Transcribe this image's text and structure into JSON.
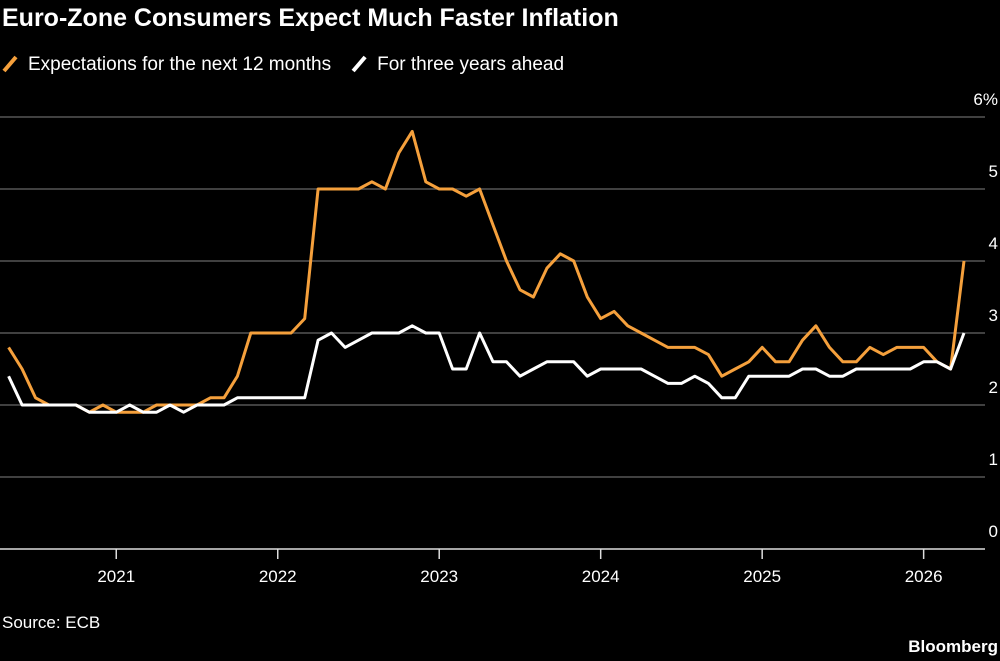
{
  "chart_data": {
    "type": "line",
    "title": "Euro-Zone Consumers Expect Much Faster Inflation",
    "source": "Source: ECB",
    "brand": "Bloomberg",
    "x": [
      2020.333,
      2020.417,
      2020.5,
      2020.583,
      2020.667,
      2020.75,
      2020.833,
      2020.917,
      2021.0,
      2021.083,
      2021.167,
      2021.25,
      2021.333,
      2021.417,
      2021.5,
      2021.583,
      2021.667,
      2021.75,
      2021.833,
      2021.917,
      2022.0,
      2022.083,
      2022.167,
      2022.25,
      2022.333,
      2022.417,
      2022.5,
      2022.583,
      2022.667,
      2022.75,
      2022.833,
      2022.917,
      2023.0,
      2023.083,
      2023.167,
      2023.25,
      2023.333,
      2023.417,
      2023.5,
      2023.583,
      2023.667,
      2023.75,
      2023.833,
      2023.917,
      2024.0,
      2024.083,
      2024.167,
      2024.25,
      2024.333,
      2024.417,
      2024.5,
      2024.583,
      2024.667,
      2024.75,
      2024.833,
      2024.917,
      2025.0,
      2025.083,
      2025.167,
      2025.25,
      2025.333,
      2025.417,
      2025.5,
      2025.583,
      2025.667,
      2025.75,
      2025.833,
      2025.917,
      2026.0,
      2026.083,
      2026.167,
      2026.25
    ],
    "series": [
      {
        "name": "Expectations for the next 12 months",
        "color": "#f5a03c",
        "values": [
          2.8,
          2.5,
          2.1,
          2.0,
          2.0,
          2.0,
          1.9,
          2.0,
          1.9,
          1.9,
          1.9,
          2.0,
          2.0,
          2.0,
          2.0,
          2.1,
          2.1,
          2.4,
          3.0,
          3.0,
          3.0,
          3.0,
          3.2,
          5.0,
          5.0,
          5.0,
          5.0,
          5.1,
          5.0,
          5.5,
          5.8,
          5.1,
          5.0,
          5.0,
          4.9,
          5.0,
          4.5,
          4.0,
          3.6,
          3.5,
          3.9,
          4.1,
          4.0,
          3.5,
          3.2,
          3.3,
          3.1,
          3.0,
          2.9,
          2.8,
          2.8,
          2.8,
          2.7,
          2.4,
          2.5,
          2.6,
          2.8,
          2.6,
          2.6,
          2.9,
          3.1,
          2.8,
          2.6,
          2.6,
          2.8,
          2.7,
          2.8,
          2.8,
          2.8,
          2.6,
          2.5,
          4.0
        ]
      },
      {
        "name": "For three years ahead",
        "color": "#ffffff",
        "values": [
          2.4,
          2.0,
          2.0,
          2.0,
          2.0,
          2.0,
          1.9,
          1.9,
          1.9,
          2.0,
          1.9,
          1.9,
          2.0,
          1.9,
          2.0,
          2.0,
          2.0,
          2.1,
          2.1,
          2.1,
          2.1,
          2.1,
          2.1,
          2.9,
          3.0,
          2.8,
          2.9,
          3.0,
          3.0,
          3.0,
          3.1,
          3.0,
          3.0,
          2.5,
          2.5,
          3.0,
          2.6,
          2.6,
          2.4,
          2.5,
          2.6,
          2.6,
          2.6,
          2.4,
          2.5,
          2.5,
          2.5,
          2.5,
          2.4,
          2.3,
          2.3,
          2.4,
          2.3,
          2.1,
          2.1,
          2.4,
          2.4,
          2.4,
          2.4,
          2.5,
          2.5,
          2.4,
          2.4,
          2.5,
          2.5,
          2.5,
          2.5,
          2.5,
          2.6,
          2.6,
          2.5,
          3.0
        ]
      }
    ],
    "xlim": [
      2020.28,
      2026.38
    ],
    "xticks": [
      2021,
      2022,
      2023,
      2024,
      2025,
      2026
    ],
    "ylim": [
      0,
      6
    ],
    "yticks": [
      0,
      1,
      2,
      3,
      4,
      5,
      {
        "value": 6,
        "label": "6%"
      }
    ],
    "grid": true
  }
}
